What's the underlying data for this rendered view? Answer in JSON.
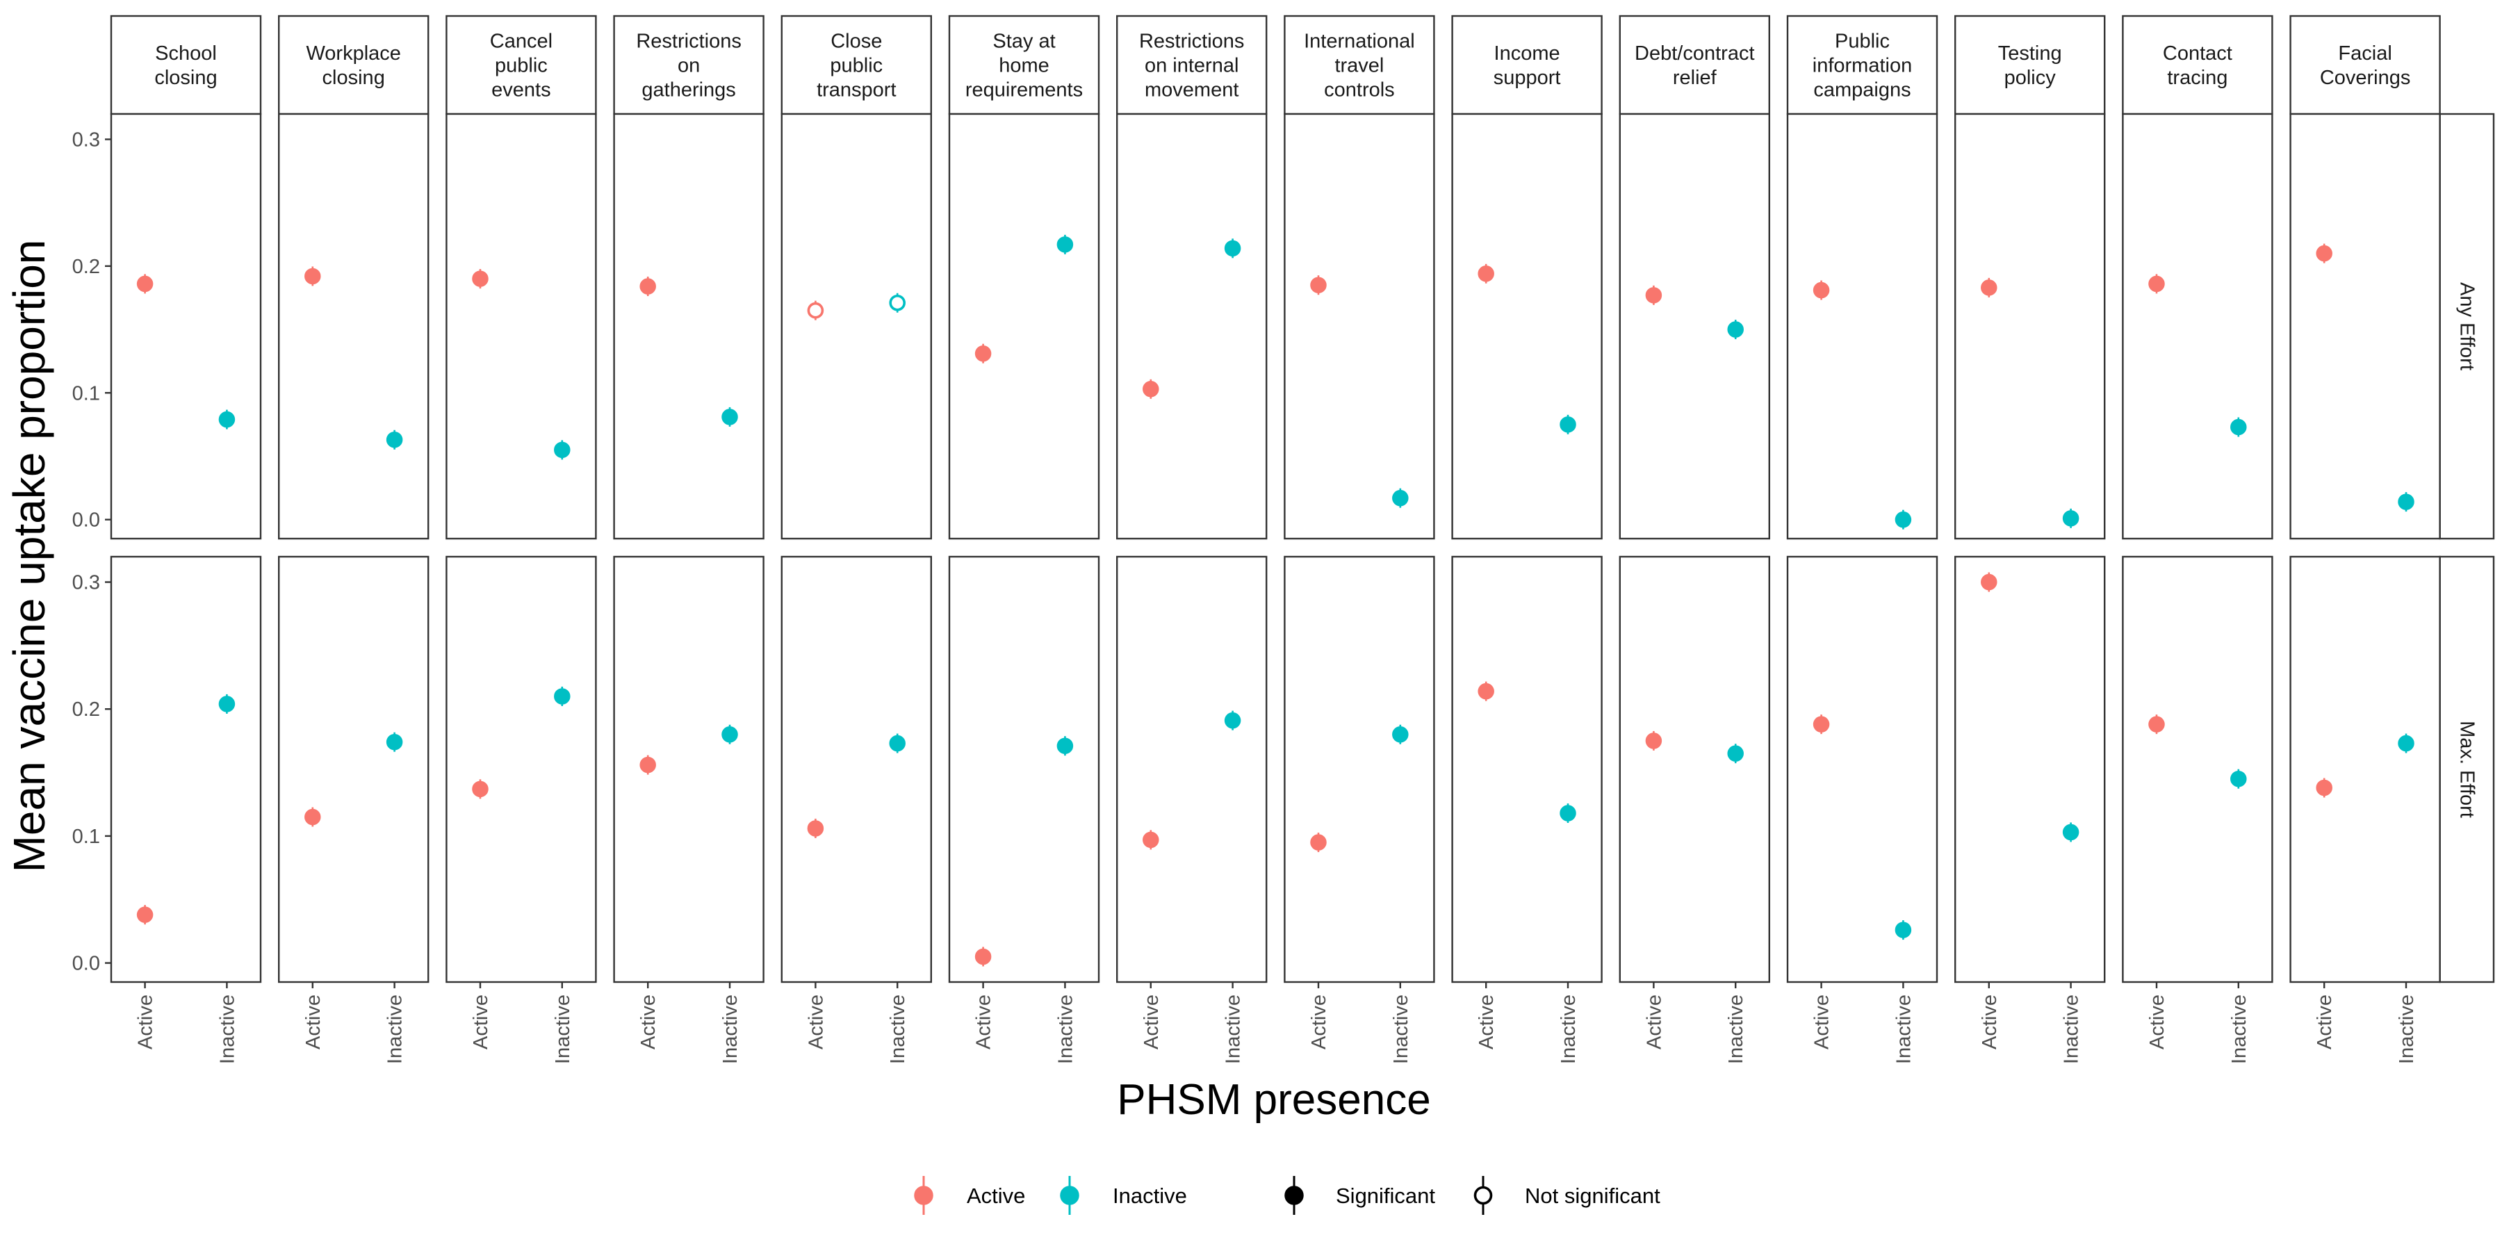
{
  "chart_data": {
    "type": "scatter",
    "xlabel": "PHSM presence",
    "ylabel": "Mean vaccine uptake proportion",
    "ylim": [
      -0.015,
      0.32
    ],
    "yticks": [
      0.0,
      0.1,
      0.2,
      0.3
    ],
    "ytick_labels": [
      "0.0",
      "0.1",
      "0.2",
      "0.3"
    ],
    "categories": [
      "Active",
      "Inactive"
    ],
    "panel_columns": [
      {
        "label": "School closing",
        "lines": [
          "School",
          "closing"
        ]
      },
      {
        "label": "Workplace closing",
        "lines": [
          "Workplace",
          "closing"
        ]
      },
      {
        "label": "Cancel public events",
        "lines": [
          "Cancel",
          "public",
          "events"
        ]
      },
      {
        "label": "Restrictions on gatherings",
        "lines": [
          "Restrictions",
          "on",
          "gatherings"
        ]
      },
      {
        "label": "Close public transport",
        "lines": [
          "Close",
          "public",
          "transport"
        ]
      },
      {
        "label": "Stay at home requirements",
        "lines": [
          "Stay at",
          "home",
          "requirements"
        ]
      },
      {
        "label": "Restrictions on internal movement",
        "lines": [
          "Restrictions",
          "on internal",
          "movement"
        ]
      },
      {
        "label": "International travel controls",
        "lines": [
          "International",
          "travel",
          "controls"
        ]
      },
      {
        "label": "Income support",
        "lines": [
          "Income",
          "support"
        ]
      },
      {
        "label": "Debt/contract relief",
        "lines": [
          "Debt/contract",
          "relief"
        ]
      },
      {
        "label": "Public information campaigns",
        "lines": [
          "Public",
          "information",
          "campaigns"
        ]
      },
      {
        "label": "Testing policy",
        "lines": [
          "Testing",
          "policy"
        ]
      },
      {
        "label": "Contact tracing",
        "lines": [
          "Contact",
          "tracing"
        ]
      },
      {
        "label": "Facial Coverings",
        "lines": [
          "Facial",
          "Coverings"
        ]
      }
    ],
    "panel_rows": [
      "Any Effort",
      "Max. Effort"
    ],
    "colors": {
      "Active": "#F8766D",
      "Inactive": "#00BFC4"
    },
    "series": [
      {
        "name": "Active",
        "row": "Any Effort",
        "values": [
          0.186,
          0.192,
          0.19,
          0.184,
          0.165,
          0.131,
          0.103,
          0.185,
          0.194,
          0.177,
          0.181,
          0.183,
          0.186,
          0.21
        ],
        "significant": [
          true,
          true,
          true,
          true,
          false,
          true,
          true,
          true,
          true,
          true,
          true,
          true,
          true,
          true
        ]
      },
      {
        "name": "Inactive",
        "row": "Any Effort",
        "values": [
          0.079,
          0.063,
          0.055,
          0.081,
          0.171,
          0.217,
          0.214,
          0.017,
          0.075,
          0.15,
          0.0,
          0.001,
          0.073,
          0.014
        ],
        "significant": [
          true,
          true,
          true,
          true,
          false,
          true,
          true,
          true,
          true,
          true,
          true,
          true,
          true,
          true
        ]
      },
      {
        "name": "Active",
        "row": "Max. Effort",
        "values": [
          0.038,
          0.115,
          0.137,
          0.156,
          0.106,
          0.005,
          0.097,
          0.095,
          0.214,
          0.175,
          0.188,
          0.3,
          0.188,
          0.138
        ],
        "significant": [
          true,
          true,
          true,
          true,
          true,
          true,
          true,
          true,
          true,
          true,
          true,
          true,
          true,
          true
        ]
      },
      {
        "name": "Inactive",
        "row": "Max. Effort",
        "values": [
          0.204,
          0.174,
          0.21,
          0.18,
          0.173,
          0.171,
          0.191,
          0.18,
          0.118,
          0.165,
          0.026,
          0.103,
          0.145,
          0.173
        ],
        "significant": [
          true,
          true,
          true,
          true,
          true,
          true,
          true,
          true,
          true,
          true,
          true,
          true,
          true,
          true
        ]
      }
    ],
    "legend": {
      "placement": "bottom",
      "items": [
        {
          "label": "Active",
          "kind": "color",
          "color": "#F8766D"
        },
        {
          "label": "Inactive",
          "kind": "color",
          "color": "#00BFC4"
        },
        {
          "label": "Significant",
          "kind": "shape",
          "filled": true
        },
        {
          "label": "Not significant",
          "kind": "shape",
          "filled": false
        }
      ]
    },
    "grid": false
  }
}
